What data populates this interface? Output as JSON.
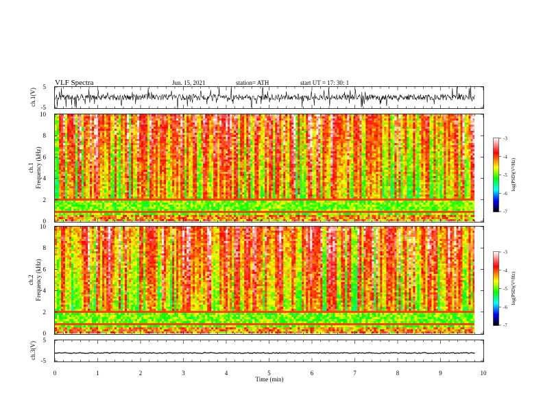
{
  "header": {
    "title": "VLF  Spectra",
    "date": "Jun. 15, 2021",
    "station": "station= ATH",
    "start": "start  UT  =    17: 30: 1"
  },
  "chart_data": [
    {
      "type": "line",
      "name": "ch1-waveform",
      "ylabel": "ch.1(V)",
      "ylim": [
        -5,
        5
      ],
      "yticks": [
        "5",
        "-5"
      ],
      "xlim": [
        0,
        10
      ],
      "data_end_min": 9.8
    },
    {
      "type": "heatmap",
      "name": "ch1-spectrogram",
      "ylabel_line1": "ch.1",
      "ylabel_line2": "Frequency (kHz)",
      "ylim": [
        0,
        10
      ],
      "yticks": [
        "0",
        "2",
        "4",
        "6",
        "8",
        "10"
      ],
      "colorbar": {
        "label": "log(PSD)(V²/Hz)",
        "range": [
          -7,
          -3
        ],
        "ticks": [
          "-3",
          "-4",
          "-5",
          "-6",
          "-7"
        ],
        "colors": [
          "#ffffff",
          "#ff0000",
          "#ffff00",
          "#00ff00",
          "#00ffff",
          "#0000ff",
          "#000000"
        ]
      }
    },
    {
      "type": "heatmap",
      "name": "ch2-spectrogram",
      "ylabel_line1": "ch.2",
      "ylabel_line2": "Frequency (kHz)",
      "ylim": [
        0,
        10
      ],
      "yticks": [
        "0",
        "2",
        "4",
        "6",
        "8",
        "10"
      ],
      "colorbar": {
        "label": "log(PSD)(V²/Hz)",
        "range": [
          -7,
          -3
        ],
        "ticks": [
          "-3",
          "-4",
          "-5",
          "-6",
          "-7"
        ],
        "colors": [
          "#ffffff",
          "#ff0000",
          "#ffff00",
          "#00ff00",
          "#00ffff",
          "#0000ff",
          "#000000"
        ]
      }
    },
    {
      "type": "line",
      "name": "ch3-waveform",
      "ylabel": "ch.3(V)",
      "ylim": [
        -5,
        5
      ],
      "yticks": [
        "5",
        "-5"
      ],
      "level": -1.2
    }
  ],
  "xaxis": {
    "label": "Time  (min)",
    "ticks": [
      "0",
      "1",
      "2",
      "3",
      "4",
      "5",
      "6",
      "7",
      "8",
      "9",
      "10"
    ],
    "range": [
      0,
      10
    ]
  }
}
